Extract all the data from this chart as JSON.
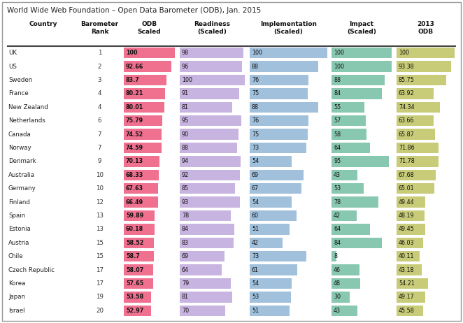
{
  "title": "World Wide Web Foundation – Open Data Barometer (ODB), Jan. 2015",
  "rows": [
    [
      "UK",
      "1",
      "100",
      98,
      100,
      100,
      "100"
    ],
    [
      "US",
      "2",
      "92.66",
      96,
      88,
      100,
      "93.38"
    ],
    [
      "Sweden",
      "3",
      "83.7",
      100,
      76,
      88,
      "85.75"
    ],
    [
      "France",
      "4",
      "80.21",
      91,
      75,
      84,
      "63.92"
    ],
    [
      "New Zealand",
      "4",
      "80.01",
      81,
      88,
      55,
      "74.34"
    ],
    [
      "Netherlands",
      "6",
      "75.79",
      95,
      76,
      57,
      "63.66"
    ],
    [
      "Canada",
      "7",
      "74.52",
      90,
      75,
      58,
      "65.87"
    ],
    [
      "Norway",
      "7",
      "74.59",
      88,
      73,
      64,
      "71.86"
    ],
    [
      "Denmark",
      "9",
      "70.13",
      94,
      54,
      95,
      "71.78"
    ],
    [
      "Australia",
      "10",
      "68.33",
      92,
      69,
      43,
      "67.68"
    ],
    [
      "Germany",
      "10",
      "67.63",
      85,
      67,
      53,
      "65.01"
    ],
    [
      "Finland",
      "12",
      "66.49",
      93,
      54,
      78,
      "49.44"
    ],
    [
      "Spain",
      "13",
      "59.89",
      78,
      60,
      42,
      "48.19"
    ],
    [
      "Estonia",
      "13",
      "60.18",
      84,
      51,
      64,
      "49.45"
    ],
    [
      "Austria",
      "15",
      "58.52",
      83,
      42,
      84,
      "46.03"
    ],
    [
      "Chile",
      "15",
      "58.7",
      69,
      73,
      8,
      "40.11"
    ],
    [
      "Czech Republic",
      "17",
      "58.07",
      64,
      61,
      46,
      "43.18"
    ],
    [
      "Korea",
      "17",
      "57.65",
      79,
      54,
      48,
      "54.21"
    ],
    [
      "Japan",
      "19",
      "53.58",
      81,
      53,
      30,
      "49.17"
    ],
    [
      "Israel",
      "20",
      "52.97",
      70,
      51,
      43,
      "45.58"
    ]
  ],
  "odb_color": "#f07090",
  "readiness_color": "#c8b4e0",
  "implementation_color": "#a0c0dc",
  "impact_color": "#88c8b0",
  "odb2013_color": "#c8cc78",
  "bg_color": "#ffffff",
  "fig_width": 6.62,
  "fig_height": 4.62,
  "dpi": 100
}
